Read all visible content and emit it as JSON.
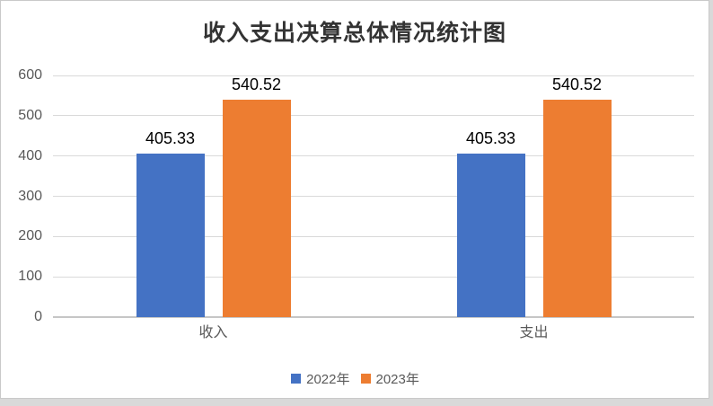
{
  "chart_data": {
    "type": "bar",
    "title": "收入支出决算总体情况统计图",
    "categories": [
      "收入",
      "支出"
    ],
    "series": [
      {
        "name": "2022年",
        "color": "#4472C4",
        "values": [
          405.33,
          405.33
        ]
      },
      {
        "name": "2023年",
        "color": "#ED7D31",
        "values": [
          540.52,
          540.52
        ]
      }
    ],
    "data_labels": [
      "405.33",
      "540.52"
    ],
    "y_ticks": [
      "0",
      "100",
      "200",
      "300",
      "400",
      "500",
      "600"
    ],
    "ylim": [
      0,
      600
    ],
    "grid": true,
    "legend_position": "bottom",
    "colors": {
      "gridline": "#d9d9d9",
      "axis_line": "#c6c6c6",
      "tick_text": "#595959",
      "title_text": "#333333",
      "data_label_text": "#000000",
      "chart_border": "#c9c9c9",
      "outer_background": "#d9d9d9",
      "plot_background": "#ffffff"
    }
  }
}
